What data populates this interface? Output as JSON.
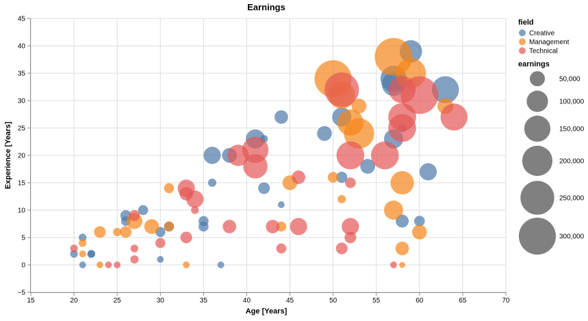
{
  "chart_data": {
    "type": "scatter",
    "title": "Earnings",
    "xlabel": "Age [Years]",
    "ylabel": "Experience [Years]",
    "xlim": [
      15,
      70
    ],
    "ylim": [
      -5,
      45
    ],
    "xticks": [
      15,
      20,
      25,
      30,
      35,
      40,
      45,
      50,
      55,
      60,
      65,
      70
    ],
    "yticks": [
      -5,
      0,
      5,
      10,
      15,
      20,
      25,
      30,
      35,
      40,
      45
    ],
    "grid": true,
    "legend": {
      "placement": "right",
      "color_title": "field",
      "size_title": "earnings",
      "size_entries": [
        {
          "value": 50000,
          "label": "50,000"
        },
        {
          "value": 100000,
          "label": "100,000"
        },
        {
          "value": 150000,
          "label": "150,000"
        },
        {
          "value": 200000,
          "label": "200,000"
        },
        {
          "value": 250000,
          "label": "250,000"
        },
        {
          "value": 300000,
          "label": "300,000"
        }
      ]
    },
    "colors": {
      "Creative": "#4c78a8",
      "Management": "#f58518",
      "Technical": "#e45756",
      "size_legend": "#808080"
    },
    "series": [
      {
        "name": "Creative",
        "points": [
          {
            "x": 20,
            "y": 2,
            "earnings": 13000
          },
          {
            "x": 21,
            "y": 5,
            "earnings": 13000
          },
          {
            "x": 21,
            "y": 0,
            "earnings": 10000
          },
          {
            "x": 22,
            "y": 2,
            "earnings": 13000
          },
          {
            "x": 22,
            "y": 2,
            "earnings": 13000
          },
          {
            "x": 26,
            "y": 9,
            "earnings": 26000
          },
          {
            "x": 26,
            "y": 8,
            "earnings": 20000
          },
          {
            "x": 28,
            "y": 10,
            "earnings": 22000
          },
          {
            "x": 30,
            "y": 6,
            "earnings": 22000
          },
          {
            "x": 30,
            "y": 1,
            "earnings": 10000
          },
          {
            "x": 31,
            "y": 7,
            "earnings": 22000
          },
          {
            "x": 35,
            "y": 8,
            "earnings": 22000
          },
          {
            "x": 35,
            "y": 7,
            "earnings": 22000
          },
          {
            "x": 36,
            "y": 20,
            "earnings": 65000
          },
          {
            "x": 36,
            "y": 15,
            "earnings": 15000
          },
          {
            "x": 37,
            "y": 0,
            "earnings": 10000
          },
          {
            "x": 38,
            "y": 20,
            "earnings": 48000
          },
          {
            "x": 41,
            "y": 23,
            "earnings": 80000
          },
          {
            "x": 42,
            "y": 23,
            "earnings": 13000
          },
          {
            "x": 42,
            "y": 14,
            "earnings": 30000
          },
          {
            "x": 44,
            "y": 27,
            "earnings": 40000
          },
          {
            "x": 44,
            "y": 11,
            "earnings": 10000
          },
          {
            "x": 49,
            "y": 24,
            "earnings": 48000
          },
          {
            "x": 51,
            "y": 27,
            "earnings": 80000
          },
          {
            "x": 51,
            "y": 16,
            "earnings": 27000
          },
          {
            "x": 54,
            "y": 18,
            "earnings": 48000
          },
          {
            "x": 57,
            "y": 34,
            "earnings": 150000
          },
          {
            "x": 57,
            "y": 33,
            "earnings": 120000
          },
          {
            "x": 57,
            "y": 23,
            "earnings": 80000
          },
          {
            "x": 58,
            "y": 25,
            "earnings": 15000
          },
          {
            "x": 58,
            "y": 8,
            "earnings": 37000
          },
          {
            "x": 59,
            "y": 39,
            "earnings": 110000
          },
          {
            "x": 60,
            "y": 8,
            "earnings": 25000
          },
          {
            "x": 61,
            "y": 17,
            "earnings": 65000
          },
          {
            "x": 63,
            "y": 32,
            "earnings": 160000
          }
        ]
      },
      {
        "name": "Management",
        "points": [
          {
            "x": 21,
            "y": 4,
            "earnings": 13000
          },
          {
            "x": 21,
            "y": 2,
            "earnings": 10000
          },
          {
            "x": 23,
            "y": 6,
            "earnings": 30000
          },
          {
            "x": 23,
            "y": 0,
            "earnings": 10000
          },
          {
            "x": 25,
            "y": 6,
            "earnings": 15000
          },
          {
            "x": 26,
            "y": 6,
            "earnings": 30000
          },
          {
            "x": 27,
            "y": 8,
            "earnings": 55000
          },
          {
            "x": 29,
            "y": 7,
            "earnings": 48000
          },
          {
            "x": 31,
            "y": 14,
            "earnings": 22000
          },
          {
            "x": 31,
            "y": 7,
            "earnings": 22000
          },
          {
            "x": 33,
            "y": 0,
            "earnings": 10000
          },
          {
            "x": 44,
            "y": 7,
            "earnings": 22000
          },
          {
            "x": 45,
            "y": 15,
            "earnings": 48000
          },
          {
            "x": 50,
            "y": 34,
            "earnings": 300000
          },
          {
            "x": 50,
            "y": 16,
            "earnings": 25000
          },
          {
            "x": 51,
            "y": 31,
            "earnings": 160000
          },
          {
            "x": 51,
            "y": 12,
            "earnings": 15000
          },
          {
            "x": 52,
            "y": 26,
            "earnings": 150000
          },
          {
            "x": 53,
            "y": 29,
            "earnings": 48000
          },
          {
            "x": 53,
            "y": 24,
            "earnings": 200000
          },
          {
            "x": 57,
            "y": 38,
            "earnings": 310000
          },
          {
            "x": 57,
            "y": 10,
            "earnings": 80000
          },
          {
            "x": 58,
            "y": 15,
            "earnings": 120000
          },
          {
            "x": 58,
            "y": 3,
            "earnings": 40000
          },
          {
            "x": 58,
            "y": 0,
            "earnings": 8000
          },
          {
            "x": 59,
            "y": 35,
            "earnings": 200000
          },
          {
            "x": 60,
            "y": 6,
            "earnings": 48000
          },
          {
            "x": 63,
            "y": 29,
            "earnings": 55000
          }
        ]
      },
      {
        "name": "Technical",
        "points": [
          {
            "x": 20,
            "y": 3,
            "earnings": 13000
          },
          {
            "x": 24,
            "y": 0,
            "earnings": 10000
          },
          {
            "x": 25,
            "y": 0,
            "earnings": 10000
          },
          {
            "x": 27,
            "y": 9,
            "earnings": 26000
          },
          {
            "x": 27,
            "y": 3,
            "earnings": 13000
          },
          {
            "x": 27,
            "y": 1,
            "earnings": 15000
          },
          {
            "x": 30,
            "y": 4,
            "earnings": 22000
          },
          {
            "x": 33,
            "y": 14,
            "earnings": 65000
          },
          {
            "x": 33,
            "y": 13,
            "earnings": 40000
          },
          {
            "x": 33,
            "y": 5,
            "earnings": 30000
          },
          {
            "x": 34,
            "y": 12,
            "earnings": 65000
          },
          {
            "x": 34,
            "y": 10,
            "earnings": 13000
          },
          {
            "x": 38,
            "y": 7,
            "earnings": 40000
          },
          {
            "x": 39,
            "y": 20,
            "earnings": 100000
          },
          {
            "x": 41,
            "y": 21,
            "earnings": 150000
          },
          {
            "x": 41,
            "y": 18,
            "earnings": 130000
          },
          {
            "x": 43,
            "y": 7,
            "earnings": 40000
          },
          {
            "x": 44,
            "y": 3,
            "earnings": 22000
          },
          {
            "x": 46,
            "y": 16,
            "earnings": 40000
          },
          {
            "x": 46,
            "y": 7,
            "earnings": 65000
          },
          {
            "x": 51,
            "y": 32,
            "earnings": 260000
          },
          {
            "x": 51,
            "y": 3,
            "earnings": 30000
          },
          {
            "x": 52,
            "y": 20,
            "earnings": 170000
          },
          {
            "x": 52,
            "y": 15,
            "earnings": 25000
          },
          {
            "x": 52,
            "y": 7,
            "earnings": 65000
          },
          {
            "x": 52,
            "y": 5,
            "earnings": 30000
          },
          {
            "x": 56,
            "y": 20,
            "earnings": 170000
          },
          {
            "x": 57,
            "y": 0,
            "earnings": 10000
          },
          {
            "x": 58,
            "y": 32,
            "earnings": 160000
          },
          {
            "x": 58,
            "y": 27,
            "earnings": 170000
          },
          {
            "x": 58,
            "y": 25,
            "earnings": 170000
          },
          {
            "x": 60,
            "y": 31,
            "earnings": 310000
          },
          {
            "x": 64,
            "y": 27,
            "earnings": 160000
          }
        ]
      }
    ]
  }
}
